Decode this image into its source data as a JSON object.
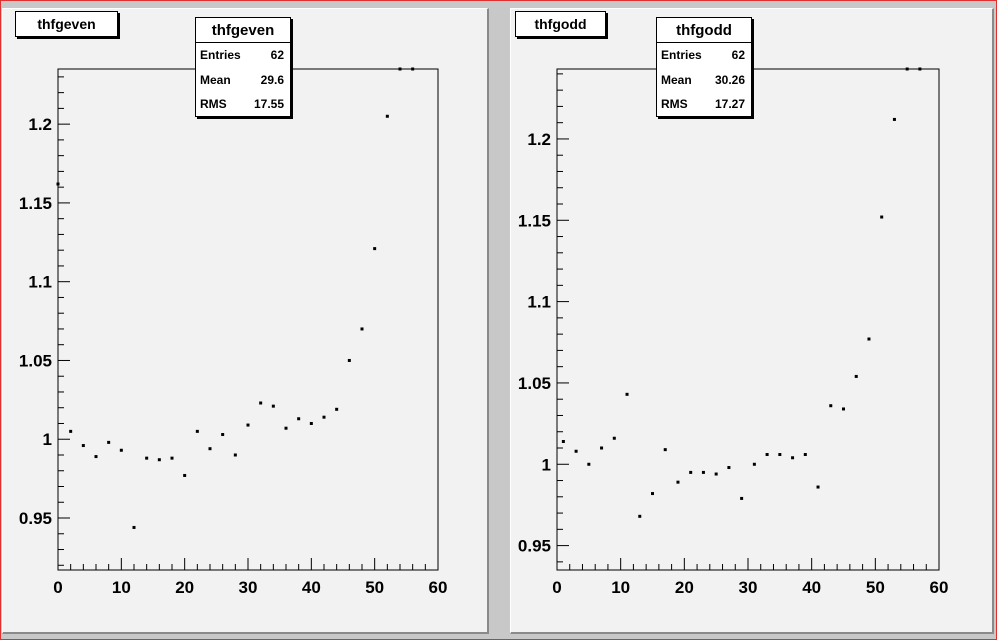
{
  "chart_data": [
    {
      "type": "scatter",
      "title": "thfgeven",
      "stats": {
        "title": "thfgeven",
        "rows": [
          {
            "label": "Entries",
            "value": "62"
          },
          {
            "label": "Mean",
            "value": "29.6"
          },
          {
            "label": "RMS",
            "value": "17.55"
          }
        ]
      },
      "xlim": [
        0,
        60
      ],
      "ylim": [
        0.917,
        1.235
      ],
      "xticks": [
        0,
        10,
        20,
        30,
        40,
        50,
        60
      ],
      "yticks": [
        0.95,
        1,
        1.05,
        1.1,
        1.15,
        1.2
      ],
      "ytick_labels": [
        "0.95",
        "1",
        "1.05",
        "1.1",
        "1.15",
        "1.2"
      ],
      "x": [
        0,
        2,
        4,
        6,
        8,
        10,
        12,
        14,
        16,
        18,
        20,
        22,
        24,
        26,
        28,
        30,
        32,
        34,
        36,
        38,
        40,
        42,
        44,
        46,
        48,
        50,
        52,
        54,
        56
      ],
      "y": [
        1.162,
        1.005,
        0.996,
        0.989,
        0.998,
        0.993,
        0.944,
        0.988,
        0.987,
        0.988,
        0.977,
        1.005,
        0.994,
        1.003,
        0.99,
        1.009,
        1.023,
        1.021,
        1.007,
        1.013,
        1.01,
        1.014,
        1.019,
        1.05,
        1.07,
        1.121,
        1.205,
        1.235,
        1.235
      ]
    },
    {
      "type": "scatter",
      "title": "thfgodd",
      "stats": {
        "title": "thfgodd",
        "rows": [
          {
            "label": "Entries",
            "value": "62"
          },
          {
            "label": "Mean",
            "value": "30.26"
          },
          {
            "label": "RMS",
            "value": "17.27"
          }
        ]
      },
      "xlim": [
        0,
        60
      ],
      "ylim": [
        0.935,
        1.243
      ],
      "xticks": [
        0,
        10,
        20,
        30,
        40,
        50,
        60
      ],
      "yticks": [
        0.95,
        1,
        1.05,
        1.1,
        1.15,
        1.2
      ],
      "ytick_labels": [
        "0.95",
        "1",
        "1.05",
        "1.1",
        "1.15",
        "1.2"
      ],
      "x": [
        1,
        3,
        5,
        7,
        9,
        11,
        13,
        15,
        17,
        19,
        21,
        23,
        25,
        27,
        29,
        31,
        33,
        35,
        37,
        39,
        41,
        43,
        45,
        47,
        49,
        51,
        53,
        55,
        57
      ],
      "y": [
        1.014,
        1.008,
        1.0,
        1.01,
        1.016,
        1.043,
        0.968,
        0.982,
        1.009,
        0.989,
        0.995,
        0.995,
        0.994,
        0.998,
        0.979,
        1.0,
        1.006,
        1.006,
        1.004,
        1.006,
        0.986,
        1.036,
        1.034,
        1.054,
        1.077,
        1.152,
        1.212,
        1.243,
        1.243
      ]
    }
  ]
}
